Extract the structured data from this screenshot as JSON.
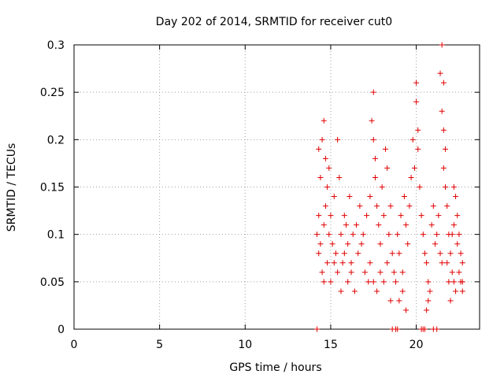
{
  "chart_data": {
    "type": "scatter",
    "title": "Day 202 of 2014, SRMTID for receiver cut0",
    "xlabel": "GPS time / hours",
    "ylabel": "SRMTID / TECUs",
    "xlim": [
      0,
      23.7
    ],
    "ylim": [
      0,
      0.3
    ],
    "xticks": [
      "0",
      "5",
      "10",
      "15",
      "20"
    ],
    "yticks": [
      "0",
      "0.05",
      "0.1",
      "0.15",
      "0.2",
      "0.25",
      "0.3"
    ],
    "grid": true,
    "legend": "none",
    "marker": "plus",
    "color": "#e00000",
    "series": [
      {
        "points": [
          [
            14.2,
            0.0
          ],
          [
            18.6,
            0.0
          ],
          [
            18.8,
            0.0
          ],
          [
            18.9,
            0.0
          ],
          [
            20.3,
            0.0
          ],
          [
            20.4,
            0.0
          ],
          [
            20.5,
            0.0
          ],
          [
            21.0,
            0.0
          ],
          [
            21.2,
            0.0
          ],
          [
            14.3,
            0.19
          ],
          [
            14.5,
            0.2
          ],
          [
            14.6,
            0.22
          ],
          [
            14.4,
            0.16
          ],
          [
            14.7,
            0.18
          ],
          [
            14.8,
            0.15
          ],
          [
            14.9,
            0.17
          ],
          [
            14.2,
            0.1
          ],
          [
            14.3,
            0.08
          ],
          [
            14.3,
            0.12
          ],
          [
            14.4,
            0.09
          ],
          [
            14.5,
            0.06
          ],
          [
            14.6,
            0.11
          ],
          [
            14.6,
            0.05
          ],
          [
            14.7,
            0.13
          ],
          [
            14.8,
            0.07
          ],
          [
            14.9,
            0.1
          ],
          [
            15.0,
            0.12
          ],
          [
            15.1,
            0.09
          ],
          [
            15.2,
            0.14
          ],
          [
            15.3,
            0.08
          ],
          [
            15.4,
            0.2
          ],
          [
            15.5,
            0.16
          ],
          [
            15.6,
            0.1
          ],
          [
            15.7,
            0.07
          ],
          [
            15.8,
            0.12
          ],
          [
            15.9,
            0.11
          ],
          [
            16.0,
            0.09
          ],
          [
            16.1,
            0.14
          ],
          [
            16.2,
            0.06
          ],
          [
            16.3,
            0.1
          ],
          [
            15.0,
            0.05
          ],
          [
            15.2,
            0.07
          ],
          [
            15.4,
            0.06
          ],
          [
            15.6,
            0.04
          ],
          [
            15.8,
            0.08
          ],
          [
            16.0,
            0.05
          ],
          [
            16.2,
            0.07
          ],
          [
            16.4,
            0.04
          ],
          [
            16.5,
            0.11
          ],
          [
            16.6,
            0.08
          ],
          [
            16.7,
            0.13
          ],
          [
            16.8,
            0.09
          ],
          [
            16.9,
            0.1
          ],
          [
            17.0,
            0.06
          ],
          [
            17.1,
            0.12
          ],
          [
            17.2,
            0.05
          ],
          [
            17.3,
            0.14
          ],
          [
            17.4,
            0.22
          ],
          [
            17.5,
            0.25
          ],
          [
            17.5,
            0.2
          ],
          [
            17.6,
            0.18
          ],
          [
            17.6,
            0.16
          ],
          [
            17.7,
            0.13
          ],
          [
            17.8,
            0.11
          ],
          [
            17.9,
            0.09
          ],
          [
            18.0,
            0.15
          ],
          [
            18.1,
            0.12
          ],
          [
            18.2,
            0.19
          ],
          [
            18.3,
            0.17
          ],
          [
            18.4,
            0.1
          ],
          [
            18.5,
            0.13
          ],
          [
            18.6,
            0.08
          ],
          [
            17.3,
            0.07
          ],
          [
            17.5,
            0.05
          ],
          [
            17.7,
            0.04
          ],
          [
            17.9,
            0.06
          ],
          [
            18.1,
            0.05
          ],
          [
            18.3,
            0.07
          ],
          [
            18.5,
            0.03
          ],
          [
            18.7,
            0.06
          ],
          [
            18.9,
            0.1
          ],
          [
            19.0,
            0.08
          ],
          [
            19.1,
            0.12
          ],
          [
            19.2,
            0.06
          ],
          [
            19.3,
            0.14
          ],
          [
            19.4,
            0.11
          ],
          [
            19.5,
            0.09
          ],
          [
            19.6,
            0.13
          ],
          [
            18.8,
            0.05
          ],
          [
            19.0,
            0.03
          ],
          [
            19.2,
            0.04
          ],
          [
            19.4,
            0.02
          ],
          [
            19.7,
            0.16
          ],
          [
            19.8,
            0.2
          ],
          [
            19.9,
            0.17
          ],
          [
            20.0,
            0.26
          ],
          [
            20.0,
            0.24
          ],
          [
            20.1,
            0.21
          ],
          [
            20.1,
            0.19
          ],
          [
            20.2,
            0.15
          ],
          [
            20.3,
            0.12
          ],
          [
            20.4,
            0.1
          ],
          [
            20.5,
            0.08
          ],
          [
            20.6,
            0.07
          ],
          [
            20.7,
            0.05
          ],
          [
            20.8,
            0.04
          ],
          [
            20.7,
            0.03
          ],
          [
            20.6,
            0.02
          ],
          [
            20.9,
            0.11
          ],
          [
            21.0,
            0.13
          ],
          [
            21.1,
            0.09
          ],
          [
            21.2,
            0.1
          ],
          [
            21.3,
            0.12
          ],
          [
            21.4,
            0.08
          ],
          [
            21.5,
            0.07
          ],
          [
            21.4,
            0.27
          ],
          [
            21.5,
            0.3
          ],
          [
            21.6,
            0.26
          ],
          [
            21.5,
            0.23
          ],
          [
            21.6,
            0.21
          ],
          [
            21.7,
            0.19
          ],
          [
            21.6,
            0.17
          ],
          [
            21.7,
            0.15
          ],
          [
            21.8,
            0.13
          ],
          [
            21.9,
            0.1
          ],
          [
            22.0,
            0.08
          ],
          [
            22.1,
            0.06
          ],
          [
            22.2,
            0.05
          ],
          [
            22.3,
            0.04
          ],
          [
            22.0,
            0.03
          ],
          [
            21.9,
            0.05
          ],
          [
            22.2,
            0.15
          ],
          [
            22.3,
            0.14
          ],
          [
            22.4,
            0.12
          ],
          [
            22.5,
            0.1
          ],
          [
            22.6,
            0.08
          ],
          [
            22.7,
            0.07
          ],
          [
            22.6,
            0.05
          ],
          [
            22.7,
            0.05
          ],
          [
            22.5,
            0.06
          ],
          [
            22.4,
            0.09
          ],
          [
            22.2,
            0.11
          ],
          [
            22.1,
            0.1
          ],
          [
            21.8,
            0.07
          ],
          [
            22.7,
            0.04
          ]
        ]
      }
    ]
  }
}
